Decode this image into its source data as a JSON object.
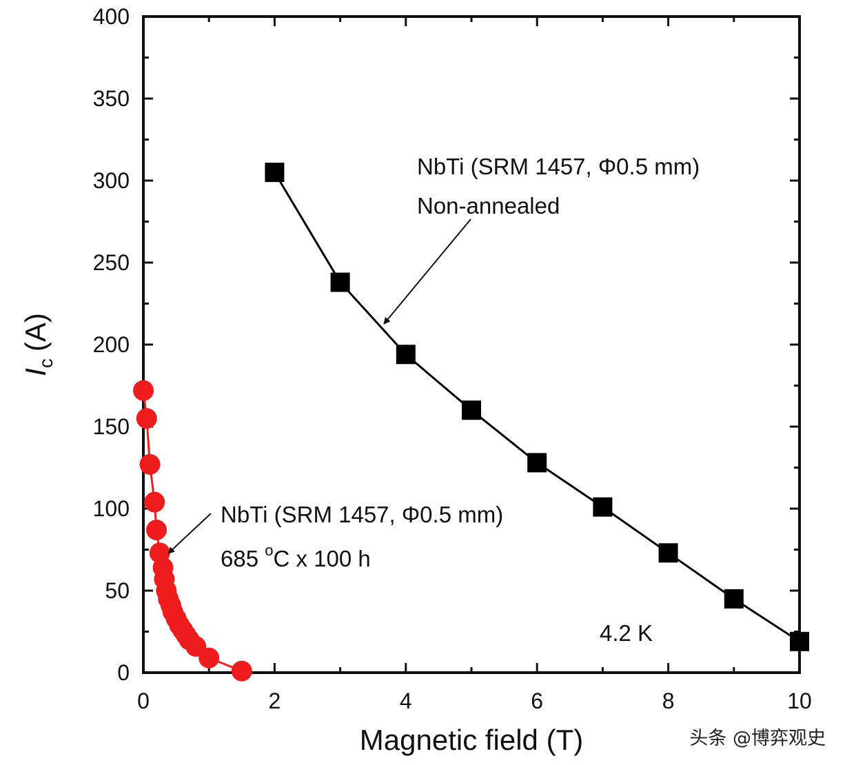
{
  "chart_data": {
    "type": "line",
    "xlabel": "Magnetic field (T)",
    "ylabel_main": "I",
    "ylabel_sub": "c",
    "ylabel_unit": "(A)",
    "xlim": [
      0,
      10
    ],
    "ylim": [
      0,
      400
    ],
    "x_ticks": [
      0,
      2,
      4,
      6,
      8,
      10
    ],
    "y_ticks": [
      0,
      50,
      100,
      150,
      200,
      250,
      300,
      350,
      400
    ],
    "grid": false,
    "series": [
      {
        "marker": "square",
        "color": "#000000",
        "x": [
          2,
          3,
          4,
          5,
          6,
          7,
          8,
          9,
          10
        ],
        "y": [
          305,
          238,
          194,
          160,
          128,
          101,
          73,
          45,
          19
        ]
      },
      {
        "marker": "circle",
        "color": "#ee1c1c",
        "x": [
          0,
          0.05,
          0.1,
          0.17,
          0.2,
          0.25,
          0.3,
          0.32,
          0.35,
          0.38,
          0.42,
          0.45,
          0.5,
          0.55,
          0.6,
          0.65,
          0.7,
          0.8,
          1.0,
          1.5
        ],
        "y": [
          172,
          155,
          127,
          104,
          87,
          73,
          64,
          57,
          50,
          45,
          41,
          37,
          33,
          29,
          26,
          23,
          20,
          16,
          9,
          1
        ]
      }
    ],
    "annotations": [
      {
        "lines": [
          "NbTi (SRM 1457, Φ0.5 mm)",
          "Non-annealed"
        ]
      },
      {
        "line1": "NbTi (SRM 1457, Φ0.5 mm)",
        "line2_value": "685 ",
        "line2_sup": "o",
        "line2_rest": "C x 100 h"
      },
      {
        "text": "4.2 K"
      }
    ]
  },
  "watermark": "头条 @博弈观史"
}
